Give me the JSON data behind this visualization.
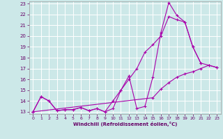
{
  "xlabel": "Windchill (Refroidissement éolien,°C)",
  "xlim": [
    -0.5,
    23.5
  ],
  "ylim": [
    12.8,
    23.2
  ],
  "xticks": [
    0,
    1,
    2,
    3,
    4,
    5,
    6,
    7,
    8,
    9,
    10,
    11,
    12,
    13,
    14,
    15,
    16,
    17,
    18,
    19,
    20,
    21,
    22,
    23
  ],
  "yticks": [
    13,
    14,
    15,
    16,
    17,
    18,
    19,
    20,
    21,
    22,
    23
  ],
  "bg_color": "#cce8e8",
  "grid_color": "#ffffff",
  "line_color": "#aa00aa",
  "line1_x": [
    0,
    1,
    2,
    3,
    4,
    5,
    6,
    7,
    8,
    9,
    10,
    11,
    12,
    13,
    14,
    15,
    16,
    17,
    18,
    19,
    20,
    21
  ],
  "line1_y": [
    13.0,
    14.4,
    14.0,
    13.1,
    13.2,
    13.2,
    13.4,
    13.1,
    13.3,
    13.0,
    13.3,
    15.0,
    16.3,
    13.3,
    13.5,
    16.2,
    20.3,
    23.1,
    21.9,
    21.3,
    19.0,
    17.5
  ],
  "line2_x": [
    0,
    1,
    2,
    3,
    4,
    5,
    6,
    7,
    8,
    9,
    10,
    11,
    12,
    13,
    14,
    15,
    16,
    17,
    18,
    19,
    20,
    21,
    22,
    23
  ],
  "line2_y": [
    13.0,
    14.4,
    14.0,
    13.1,
    13.2,
    13.2,
    13.4,
    13.1,
    13.3,
    13.0,
    14.0,
    15.0,
    16.0,
    17.0,
    18.5,
    19.2,
    20.0,
    21.8,
    21.5,
    21.3,
    19.0,
    17.5,
    17.3,
    17.1
  ],
  "line3_x": [
    0,
    15,
    16,
    17,
    18,
    19,
    20,
    21,
    22,
    23
  ],
  "line3_y": [
    13.0,
    14.3,
    15.1,
    15.7,
    16.2,
    16.5,
    16.7,
    17.0,
    17.3,
    17.1
  ]
}
